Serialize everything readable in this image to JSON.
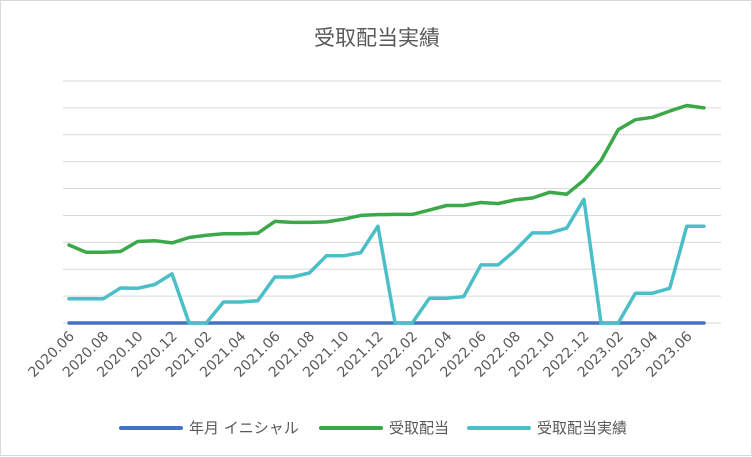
{
  "chart_data": {
    "type": "line",
    "title": "受取配当実績",
    "xlabel": "",
    "ylabel": "",
    "grid": true,
    "legend_position": "bottom",
    "x": [
      "2020.06",
      "2020.07",
      "2020.08",
      "2020.09",
      "2020.10",
      "2020.11",
      "2020.12",
      "2021.01",
      "2021.02",
      "2021.03",
      "2021.04",
      "2021.05",
      "2021.06",
      "2021.07",
      "2021.08",
      "2021.09",
      "2021.10",
      "2021.11",
      "2021.12",
      "2022.01",
      "2022.02",
      "2022.03",
      "2022.04",
      "2022.05",
      "2022.06",
      "2022.07",
      "2022.08",
      "2022.09",
      "2022.10",
      "2022.11",
      "2022.12",
      "2023.01",
      "2023.02",
      "2023.03",
      "2023.04",
      "2023.05",
      "2023.06",
      "2023.07"
    ],
    "x_tick_labels": [
      "2020.06",
      "2020.08",
      "2020.10",
      "2020.12",
      "2021.02",
      "2021.04",
      "2021.06",
      "2021.08",
      "2021.10",
      "2021.12",
      "2022.02",
      "2022.04",
      "2022.06",
      "2022.08",
      "2022.10",
      "2022.12",
      "2023.02",
      "2023.04",
      "2023.06"
    ],
    "ylim": [
      0,
      9
    ],
    "gridline_count": 9,
    "series": [
      {
        "name": "年月 イニシャル",
        "color": "#4472C4",
        "values": [
          0,
          0,
          0,
          0,
          0,
          0,
          0,
          0,
          0,
          0,
          0,
          0,
          0,
          0,
          0,
          0,
          0,
          0,
          0,
          0,
          0,
          0,
          0,
          0,
          0,
          0,
          0,
          0,
          0,
          0,
          0,
          0,
          0,
          0,
          0,
          0,
          0,
          0
        ]
      },
      {
        "name": "受取配当",
        "color": "#3BA84A",
        "values": [
          2.9,
          2.63,
          2.63,
          2.66,
          3.03,
          3.06,
          2.98,
          3.18,
          3.26,
          3.32,
          3.32,
          3.34,
          3.78,
          3.74,
          3.74,
          3.76,
          3.86,
          4.0,
          4.03,
          4.04,
          4.04,
          4.2,
          4.37,
          4.37,
          4.48,
          4.44,
          4.58,
          4.65,
          4.86,
          4.79,
          5.31,
          6.04,
          7.19,
          7.56,
          7.65,
          7.88,
          8.09,
          8.0
        ]
      },
      {
        "name": "受取配当実績",
        "color": "#4BBFC7",
        "values": [
          0.9,
          0.9,
          0.9,
          1.3,
          1.29,
          1.43,
          1.83,
          0,
          0,
          0.78,
          0.78,
          0.83,
          1.71,
          1.71,
          1.86,
          2.5,
          2.5,
          2.62,
          3.6,
          0,
          0,
          0.92,
          0.92,
          0.98,
          2.16,
          2.16,
          2.7,
          3.35,
          3.35,
          3.53,
          4.6,
          0,
          0,
          1.11,
          1.11,
          1.29,
          3.6,
          3.6
        ]
      }
    ]
  }
}
